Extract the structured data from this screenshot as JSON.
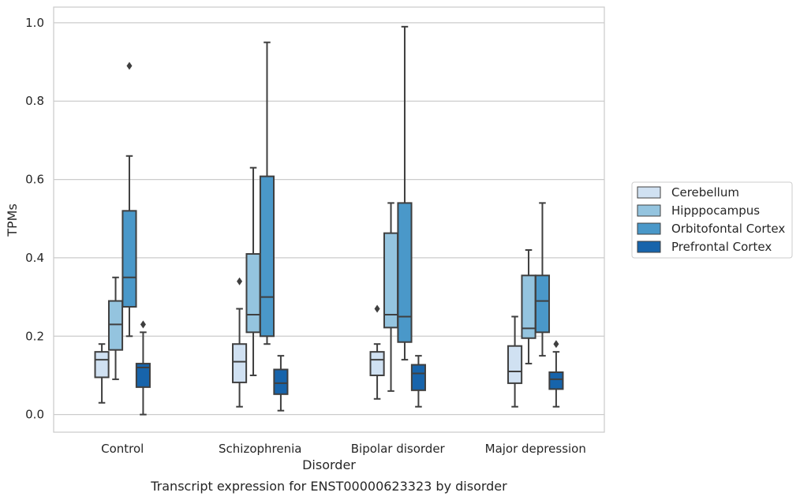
{
  "chart_data": {
    "type": "boxplot",
    "title": "",
    "caption": "Transcript expression for ENST00000623323 by disorder",
    "xlabel": "Disorder",
    "ylabel": "TPMs",
    "ylim": [
      -0.045,
      1.04
    ],
    "yticks": [
      0.0,
      0.2,
      0.4,
      0.6,
      0.8,
      1.0
    ],
    "ytick_labels": [
      "0.0",
      "0.2",
      "0.4",
      "0.6",
      "0.8",
      "1.0"
    ],
    "grid": "horizontal",
    "legend_position": "right",
    "categories": [
      "Control",
      "Schizophrenia",
      "Bipolar disorder",
      "Major depression"
    ],
    "series": [
      {
        "name": "Cerebellum",
        "color": "#d0e1f2",
        "boxes": [
          {
            "whislo": 0.03,
            "q1": 0.095,
            "med": 0.14,
            "q3": 0.16,
            "whishi": 0.18,
            "fliers": []
          },
          {
            "whislo": 0.02,
            "q1": 0.082,
            "med": 0.135,
            "q3": 0.18,
            "whishi": 0.27,
            "fliers": [
              0.34
            ]
          },
          {
            "whislo": 0.04,
            "q1": 0.1,
            "med": 0.14,
            "q3": 0.16,
            "whishi": 0.18,
            "fliers": [
              0.27
            ]
          },
          {
            "whislo": 0.02,
            "q1": 0.08,
            "med": 0.11,
            "q3": 0.175,
            "whishi": 0.25,
            "fliers": []
          }
        ]
      },
      {
        "name": "Hipppocampus",
        "color": "#94c4df",
        "boxes": [
          {
            "whislo": 0.09,
            "q1": 0.165,
            "med": 0.23,
            "q3": 0.29,
            "whishi": 0.35,
            "fliers": []
          },
          {
            "whislo": 0.1,
            "q1": 0.21,
            "med": 0.255,
            "q3": 0.41,
            "whishi": 0.63,
            "fliers": []
          },
          {
            "whislo": 0.06,
            "q1": 0.222,
            "med": 0.255,
            "q3": 0.463,
            "whishi": 0.54,
            "fliers": []
          },
          {
            "whislo": 0.13,
            "q1": 0.195,
            "med": 0.22,
            "q3": 0.355,
            "whishi": 0.42,
            "fliers": []
          }
        ]
      },
      {
        "name": "Orbitofontal Cortex",
        "color": "#4a98c9",
        "boxes": [
          {
            "whislo": 0.2,
            "q1": 0.275,
            "med": 0.35,
            "q3": 0.52,
            "whishi": 0.66,
            "fliers": [
              0.89
            ]
          },
          {
            "whislo": 0.18,
            "q1": 0.2,
            "med": 0.3,
            "q3": 0.608,
            "whishi": 0.95,
            "fliers": []
          },
          {
            "whislo": 0.14,
            "q1": 0.185,
            "med": 0.25,
            "q3": 0.54,
            "whishi": 0.99,
            "fliers": []
          },
          {
            "whislo": 0.15,
            "q1": 0.21,
            "med": 0.29,
            "q3": 0.355,
            "whishi": 0.54,
            "fliers": []
          }
        ]
      },
      {
        "name": "Prefrontal Cortex",
        "color": "#1764ab",
        "boxes": [
          {
            "whislo": 0.0,
            "q1": 0.07,
            "med": 0.12,
            "q3": 0.13,
            "whishi": 0.21,
            "fliers": [
              0.23
            ]
          },
          {
            "whislo": 0.01,
            "q1": 0.052,
            "med": 0.08,
            "q3": 0.115,
            "whishi": 0.15,
            "fliers": []
          },
          {
            "whislo": 0.02,
            "q1": 0.062,
            "med": 0.105,
            "q3": 0.127,
            "whishi": 0.15,
            "fliers": []
          },
          {
            "whislo": 0.02,
            "q1": 0.065,
            "med": 0.09,
            "q3": 0.108,
            "whishi": 0.16,
            "fliers": [
              0.18
            ]
          }
        ]
      }
    ]
  }
}
